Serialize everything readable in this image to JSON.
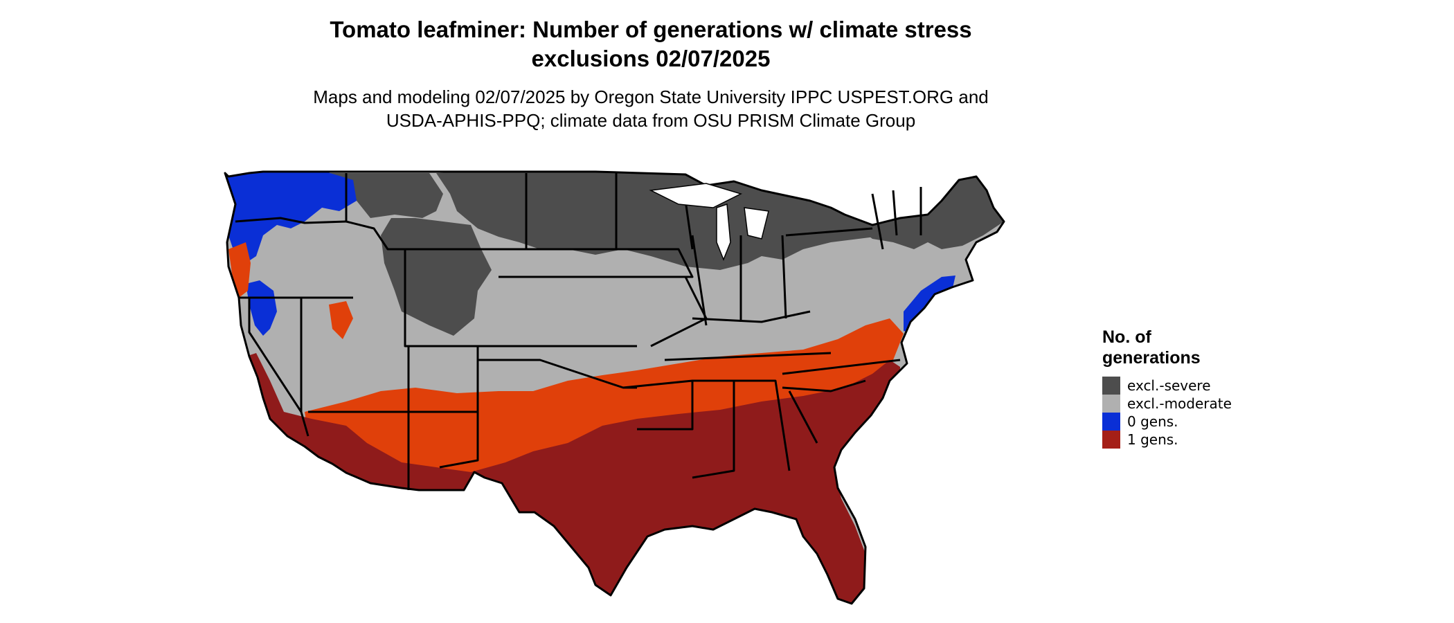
{
  "header": {
    "title_line1": "Tomato leafminer: Number of generations w/ climate stress",
    "title_line2": "exclusions 02/07/2025",
    "subtitle_line1": "Maps and modeling 02/07/2025 by Oregon State University IPPC USPEST.ORG and",
    "subtitle_line2": "USDA-APHIS-PPQ; climate data from OSU PRISM Climate Group"
  },
  "legend": {
    "title_line1": "No. of",
    "title_line2": "generations",
    "items": [
      {
        "label": "excl.-severe",
        "color": "#4d4d4d"
      },
      {
        "label": "excl.-moderate",
        "color": "#b0b0b0"
      },
      {
        "label": "0 gens.",
        "color": "#0a2fd6"
      },
      {
        "label": "1 gens.",
        "color": "#a51f17"
      }
    ]
  },
  "colors": {
    "severe": "#4d4d4d",
    "moderate": "#b0b0b0",
    "zero_gens": "#0a2fd6",
    "one_gens": "#8f1b1b",
    "transition": "#e0400a",
    "water": "#ffffff",
    "border": "#000000"
  }
}
